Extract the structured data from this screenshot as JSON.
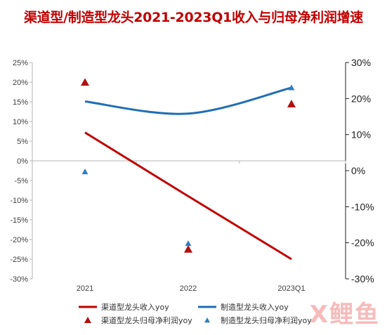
{
  "title": "渠道型/制造型龙头2021-2023Q1收入与归母净利润增速",
  "watermark": "X鲤鱼",
  "colors": {
    "channel": "#c00000",
    "manufacture": "#1f6eb4",
    "channel_marker": "#b01010",
    "manufacture_marker": "#2f7fc0"
  },
  "chart_data": {
    "type": "line",
    "title": "渠道型/制造型龙头2021-2023Q1收入与归母净利润增速",
    "categories": [
      "2021",
      "2022",
      "2023Q1"
    ],
    "y_left": {
      "ylim": [
        -30,
        25
      ],
      "ticks": [
        25,
        20,
        15,
        10,
        5,
        0,
        -5,
        -10,
        -15,
        -20,
        -25,
        -30
      ],
      "tick_labels": [
        "25%",
        "20%",
        "15%",
        "10%",
        "5%",
        "0%",
        "-5%",
        "-10%",
        "-15%",
        "-20%",
        "-25%",
        "-30%"
      ]
    },
    "y_right": {
      "ylim": [
        -30,
        30
      ],
      "ticks": [
        30,
        20,
        10,
        0,
        -10,
        -20,
        -30
      ],
      "tick_labels": [
        "30%",
        "20%",
        "10%",
        "0%",
        "-10%",
        "-20%",
        "-30%"
      ]
    },
    "series": [
      {
        "name": "渠道型龙头收入yoy",
        "type": "line",
        "axis": "left",
        "values": [
          7.2,
          -9,
          -25
        ],
        "color": "#c00000"
      },
      {
        "name": "制造型龙头收入yoy",
        "type": "line",
        "axis": "left",
        "smooth": true,
        "values": [
          15.1,
          12,
          18.6
        ],
        "color": "#1f6eb4"
      },
      {
        "name": "渠道型龙头归母净利润yoy",
        "type": "scatter",
        "axis": "right",
        "marker": "triangle",
        "values": [
          24.5,
          -21.8,
          18.5
        ],
        "color": "#b01010"
      },
      {
        "name": "制造型龙头归母净利润yoy",
        "type": "scatter",
        "axis": "right",
        "marker": "triangle",
        "values": [
          -0.3,
          -20.2,
          23
        ],
        "color": "#2f7fc0"
      }
    ],
    "legend": {
      "position": "bottom",
      "columns": 2
    },
    "grid": false
  }
}
